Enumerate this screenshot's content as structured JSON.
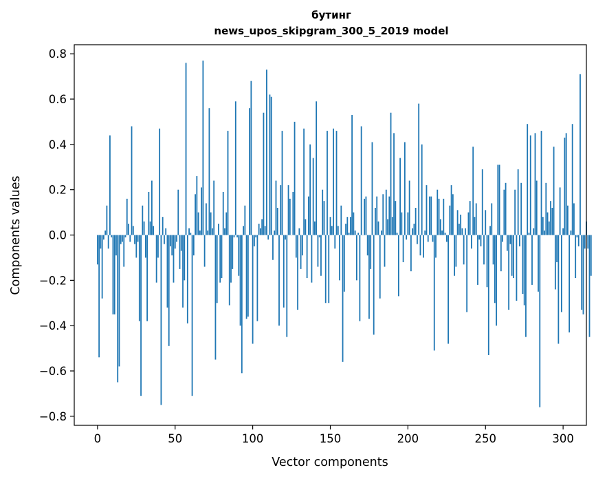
{
  "chart_data": {
    "type": "bar",
    "title": "бутинг",
    "subtitle": "news_upos_skipgram_300_5_2019 model",
    "xlabel": "Vector components",
    "ylabel": "Components values",
    "xlim": [
      -15,
      315
    ],
    "ylim": [
      -0.84,
      0.84
    ],
    "xticks": [
      0,
      50,
      100,
      150,
      200,
      250,
      300
    ],
    "yticks": [
      -0.8,
      -0.6,
      -0.4,
      -0.2,
      0.0,
      0.2,
      0.4,
      0.6,
      0.8
    ],
    "ytick_labels": [
      "−0.8",
      "−0.6",
      "−0.4",
      "−0.2",
      "0.0",
      "0.2",
      "0.4",
      "0.6",
      "0.8"
    ],
    "xtick_labels": [
      "0",
      "50",
      "100",
      "150",
      "200",
      "250",
      "300"
    ],
    "grid": false,
    "values": [
      -0.13,
      -0.54,
      -0.06,
      -0.28,
      -0.02,
      0.02,
      0.13,
      -0.06,
      0.44,
      -0.01,
      -0.35,
      -0.35,
      -0.09,
      -0.65,
      -0.58,
      -0.04,
      -0.03,
      -0.14,
      -0.01,
      0.16,
      0.05,
      -0.03,
      0.48,
      0.04,
      -0.04,
      -0.1,
      -0.03,
      -0.38,
      -0.71,
      0.13,
      0.06,
      -0.1,
      -0.38,
      0.19,
      0.06,
      0.24,
      0.04,
      0.0,
      -0.21,
      -0.1,
      0.47,
      -0.75,
      0.08,
      -0.04,
      0.03,
      -0.32,
      -0.49,
      -0.05,
      -0.09,
      -0.21,
      -0.06,
      -0.03,
      0.2,
      -0.15,
      -0.07,
      -0.32,
      -0.2,
      0.76,
      -0.39,
      0.03,
      0.01,
      -0.71,
      -0.09,
      0.18,
      0.26,
      0.1,
      0.02,
      0.21,
      0.77,
      -0.14,
      0.14,
      0.02,
      0.56,
      0.1,
      0.03,
      0.24,
      -0.55,
      -0.3,
      0.05,
      -0.21,
      -0.19,
      0.19,
      0.03,
      0.1,
      0.46,
      -0.31,
      -0.21,
      -0.15,
      -0.01,
      0.59,
      -0.01,
      -0.18,
      -0.4,
      -0.61,
      0.04,
      0.13,
      -0.37,
      -0.36,
      0.56,
      0.68,
      -0.48,
      -0.05,
      -0.01,
      -0.38,
      0.05,
      0.03,
      0.07,
      0.54,
      0.04,
      0.73,
      -0.02,
      0.62,
      0.61,
      -0.11,
      0.02,
      0.24,
      0.12,
      -0.4,
      0.22,
      0.46,
      -0.32,
      -0.02,
      -0.45,
      0.22,
      0.16,
      0.0,
      0.19,
      0.5,
      -0.1,
      -0.33,
      0.03,
      -0.15,
      -0.09,
      0.47,
      0.07,
      -0.19,
      0.17,
      0.4,
      -0.21,
      0.34,
      0.06,
      0.59,
      -0.14,
      -0.01,
      -0.18,
      0.2,
      0.15,
      -0.3,
      0.46,
      -0.3,
      0.08,
      0.04,
      0.47,
      -0.06,
      0.46,
      0.04,
      -0.2,
      0.13,
      -0.56,
      -0.25,
      0.05,
      0.08,
      0.01,
      0.08,
      0.53,
      0.1,
      0.02,
      -0.2,
      0.01,
      -0.38,
      0.48,
      0.0,
      0.16,
      0.17,
      -0.09,
      -0.37,
      -0.15,
      0.41,
      -0.44,
      0.12,
      0.17,
      0.06,
      -0.28,
      0.02,
      0.18,
      -0.14,
      0.2,
      0.07,
      0.17,
      0.54,
      0.08,
      0.45,
      0.15,
      0.01,
      -0.27,
      0.34,
      0.1,
      -0.12,
      0.41,
      -0.02,
      0.1,
      0.24,
      -0.16,
      0.03,
      0.05,
      0.12,
      -0.04,
      0.58,
      -0.09,
      0.4,
      -0.1,
      0.02,
      0.22,
      -0.03,
      0.17,
      0.17,
      -0.03,
      -0.51,
      -0.1,
      0.2,
      0.16,
      0.07,
      0.02,
      0.16,
      0.01,
      -0.03,
      -0.48,
      0.13,
      0.22,
      0.18,
      -0.18,
      -0.14,
      0.11,
      0.05,
      0.09,
      0.03,
      -0.13,
      0.03,
      -0.34,
      0.1,
      0.15,
      -0.06,
      0.39,
      0.08,
      0.14,
      -0.22,
      -0.02,
      -0.05,
      0.29,
      -0.13,
      0.11,
      -0.23,
      -0.53,
      0.04,
      0.14,
      -0.13,
      -0.3,
      -0.4,
      0.31,
      0.31,
      -0.16,
      -0.03,
      0.2,
      0.23,
      -0.07,
      -0.33,
      -0.04,
      -0.18,
      -0.19,
      0.2,
      -0.29,
      0.29,
      -0.05,
      0.23,
      -0.26,
      -0.31,
      -0.45,
      0.49,
      0.01,
      0.44,
      -0.22,
      0.03,
      0.45,
      0.24,
      -0.25,
      -0.76,
      0.46,
      0.08,
      0.02,
      0.23,
      0.1,
      0.06,
      0.15,
      0.12,
      0.39,
      -0.24,
      -0.12,
      -0.48,
      0.21,
      -0.34,
      0.03,
      0.43,
      0.45,
      0.13,
      -0.43,
      0.02,
      0.49,
      0.14,
      -0.19,
      -0.01,
      -0.05,
      0.71,
      -0.33,
      -0.35,
      -0.06,
      0.06,
      -0.06,
      -0.45,
      -0.18
    ]
  }
}
